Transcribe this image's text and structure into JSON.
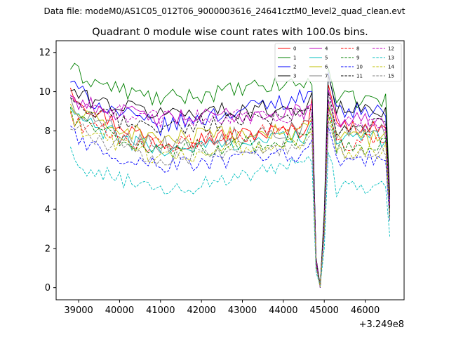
{
  "figure": {
    "suptitle": "Data file: modeM0/AS1C05_012T06_9000003616_24641cztM0_level2_quad_clean.evt"
  },
  "chart_data": {
    "type": "line",
    "title": "Quadrant 0 module wise count rates with 100.0s bins.",
    "xlabel": "",
    "ylabel": "",
    "x_offset_label": "+3.249e8",
    "xlim": [
      38450,
      46950
    ],
    "ylim": [
      -0.62,
      12.6
    ],
    "x_ticks": [
      39000,
      40000,
      41000,
      42000,
      43000,
      44000,
      45000,
      46000
    ],
    "x_tick_labels": [
      "39000",
      "40000",
      "41000",
      "42000",
      "43000",
      "44000",
      "45000",
      "46000"
    ],
    "y_ticks": [
      0,
      2,
      4,
      6,
      8,
      10,
      12
    ],
    "y_tick_labels": [
      "0",
      "2",
      "4",
      "6",
      "8",
      "10",
      "12"
    ],
    "legend_position": "top-right",
    "x_start": 38800,
    "x_step": 100,
    "x_end": 46600,
    "gap_points": [
      {
        "x": 44700,
        "mult": 1.06
      },
      {
        "x": 44800,
        "mult": 0.16
      },
      {
        "x": 44900,
        "mult": 0.01
      },
      {
        "x": 45000,
        "mult": 0.4
      },
      {
        "x": 45100,
        "mult": 1.32
      },
      {
        "x": 45200,
        "mult": 1.18
      },
      {
        "x": 46600,
        "mult": 0.5
      }
    ],
    "series": [
      {
        "name": "0",
        "color": "#ff0000",
        "dash": "solid",
        "start": 10.4,
        "dip": 7.4,
        "rise": 8.1,
        "tail": 8.2,
        "peak": 10.4
      },
      {
        "name": "1",
        "color": "#008000",
        "dash": "solid",
        "start": 11.3,
        "dip": 9.6,
        "rise": 10.5,
        "tail": 9.6,
        "peak": 11.2
      },
      {
        "name": "2",
        "color": "#0000ff",
        "dash": "solid",
        "start": 10.6,
        "dip": 8.2,
        "rise": 9.8,
        "tail": 9.0,
        "peak": 10.9
      },
      {
        "name": "3",
        "color": "#000000",
        "dash": "solid",
        "start": 10.1,
        "dip": 8.9,
        "rise": 9.2,
        "tail": 9.1,
        "peak": 10.9
      },
      {
        "name": "4",
        "color": "#bf00bf",
        "dash": "solid",
        "start": 9.8,
        "dip": 8.6,
        "rise": 9.0,
        "tail": 8.6,
        "peak": 10.1
      },
      {
        "name": "5",
        "color": "#00bfbf",
        "dash": "solid",
        "start": 9.2,
        "dip": 7.0,
        "rise": 7.8,
        "tail": 7.6,
        "peak": 9.2
      },
      {
        "name": "6",
        "color": "#bfbf00",
        "dash": "solid",
        "start": 9.3,
        "dip": 7.6,
        "rise": 8.0,
        "tail": 7.7,
        "peak": 9.4
      },
      {
        "name": "7",
        "color": "#808080",
        "dash": "solid",
        "start": 9.6,
        "dip": 7.3,
        "rise": 8.2,
        "tail": 7.9,
        "peak": 9.6
      },
      {
        "name": "8",
        "color": "#ff0000",
        "dash": "dashed",
        "start": 8.8,
        "dip": 7.2,
        "rise": 8.2,
        "tail": 7.4,
        "peak": 9.1
      },
      {
        "name": "9",
        "color": "#008000",
        "dash": "dashed",
        "start": 9.0,
        "dip": 7.0,
        "rise": 7.5,
        "tail": 7.2,
        "peak": 8.9
      },
      {
        "name": "10",
        "color": "#0000ff",
        "dash": "dashed",
        "start": 8.0,
        "dip": 6.2,
        "rise": 6.8,
        "tail": 6.6,
        "peak": 8.2
      },
      {
        "name": "11",
        "color": "#000000",
        "dash": "dashed",
        "start": 9.4,
        "dip": 8.2,
        "rise": 8.8,
        "tail": 8.2,
        "peak": 9.9
      },
      {
        "name": "12",
        "color": "#bf00bf",
        "dash": "dashed",
        "start": 9.5,
        "dip": 8.6,
        "rise": 8.9,
        "tail": 8.3,
        "peak": 9.6
      },
      {
        "name": "13",
        "color": "#00bfbf",
        "dash": "dashed",
        "start": 6.8,
        "dip": 4.9,
        "rise": 6.3,
        "tail": 5.1,
        "peak": 6.9
      },
      {
        "name": "14",
        "color": "#bfbf00",
        "dash": "dashed",
        "start": 8.6,
        "dip": 6.7,
        "rise": 7.4,
        "tail": 7.0,
        "peak": 8.7
      },
      {
        "name": "15",
        "color": "#808080",
        "dash": "dashed",
        "start": 8.5,
        "dip": 6.6,
        "rise": 7.2,
        "tail": 6.9,
        "peak": 8.6
      }
    ]
  }
}
